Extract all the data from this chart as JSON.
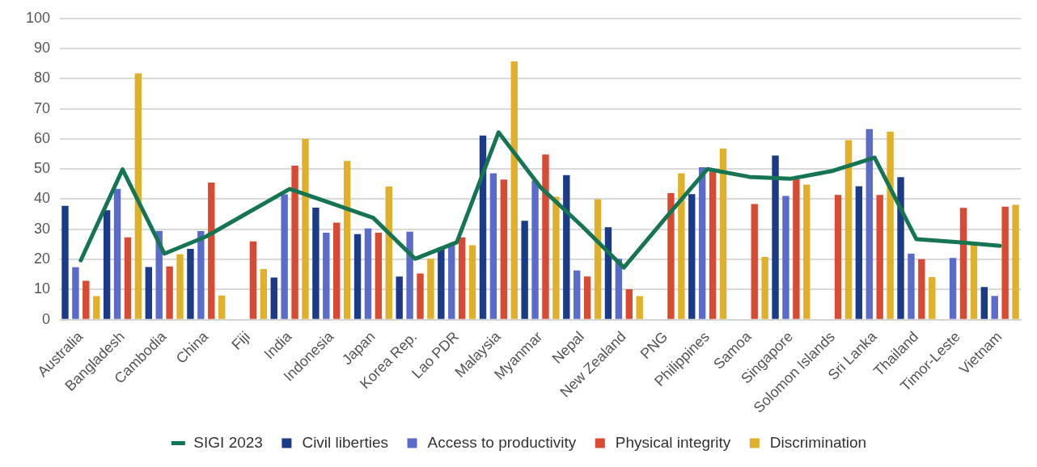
{
  "chart_data": {
    "type": "bar",
    "categories": [
      "Australia",
      "Bangladesh",
      "Cambodia",
      "China",
      "Fiji",
      "India",
      "Indonesia",
      "Japan",
      "Korea Rep.",
      "Lao PDR",
      "Malaysia",
      "Myanmar",
      "Nepal",
      "New Zealand",
      "PNG",
      "Philippines",
      "Samoa",
      "Singapore",
      "Solomon Islands",
      "Sri Lanka",
      "Thailand",
      "Timor-Leste",
      "Vietnam"
    ],
    "series": [
      {
        "name": "Civil liberties",
        "color": "#1b3a87",
        "values": [
          37.8,
          36.3,
          17.5,
          23.5,
          null,
          14.0,
          37.2,
          28.4,
          14.3,
          24,
          61.1,
          32.8,
          48.0,
          30.7,
          null,
          41.7,
          null,
          54.5,
          null,
          44.3,
          47.3,
          null,
          10.8
        ]
      },
      {
        "name": "Access to productivity",
        "color": "#5b6bc9",
        "values": [
          17.4,
          43.4,
          29.5,
          29.4,
          null,
          41.6,
          28.9,
          30.3,
          29.2,
          25,
          48.6,
          46.2,
          16.3,
          20.2,
          null,
          50.6,
          null,
          41.1,
          null,
          63.3,
          21.9,
          20.5,
          7.9
        ]
      },
      {
        "name": "Physical integrity",
        "color": "#d94a33",
        "values": [
          12.9,
          27.3,
          17.7,
          45.5,
          26.0,
          51.1,
          32.2,
          28.9,
          15.3,
          27.3,
          46.5,
          54.8,
          14.3,
          10.1,
          42.0,
          49.2,
          38.4,
          46.6,
          41.4,
          41.4,
          20.1,
          37.1,
          37.5
        ]
      },
      {
        "name": "Discrimination",
        "color": "#e0b02a",
        "values": [
          7.8,
          81.8,
          21.7,
          8.0,
          16.8,
          60.0,
          52.7,
          44.2,
          20.2,
          24.7,
          85.7,
          40.8,
          39.9,
          7.8,
          48.6,
          56.8,
          20.8,
          44.8,
          59.6,
          62.4,
          14.1,
          25,
          38.1
        ]
      },
      {
        "name": "SIGI 2023",
        "type": "line",
        "color": "#157553",
        "values": [
          19.7,
          49.9,
          21.9,
          27.6,
          35.5,
          43.4,
          38.6,
          33.8,
          20.2,
          25.7,
          62.2,
          44,
          31,
          17.3,
          33.8,
          50,
          47.4,
          46.8,
          49.4,
          53.8,
          26.7,
          25.7,
          24.5
        ]
      }
    ],
    "ylim": [
      0,
      100
    ],
    "yticks": [
      0,
      10,
      20,
      30,
      40,
      50,
      60,
      70,
      80,
      90,
      100
    ],
    "grid": "y",
    "legend": "bottom"
  }
}
